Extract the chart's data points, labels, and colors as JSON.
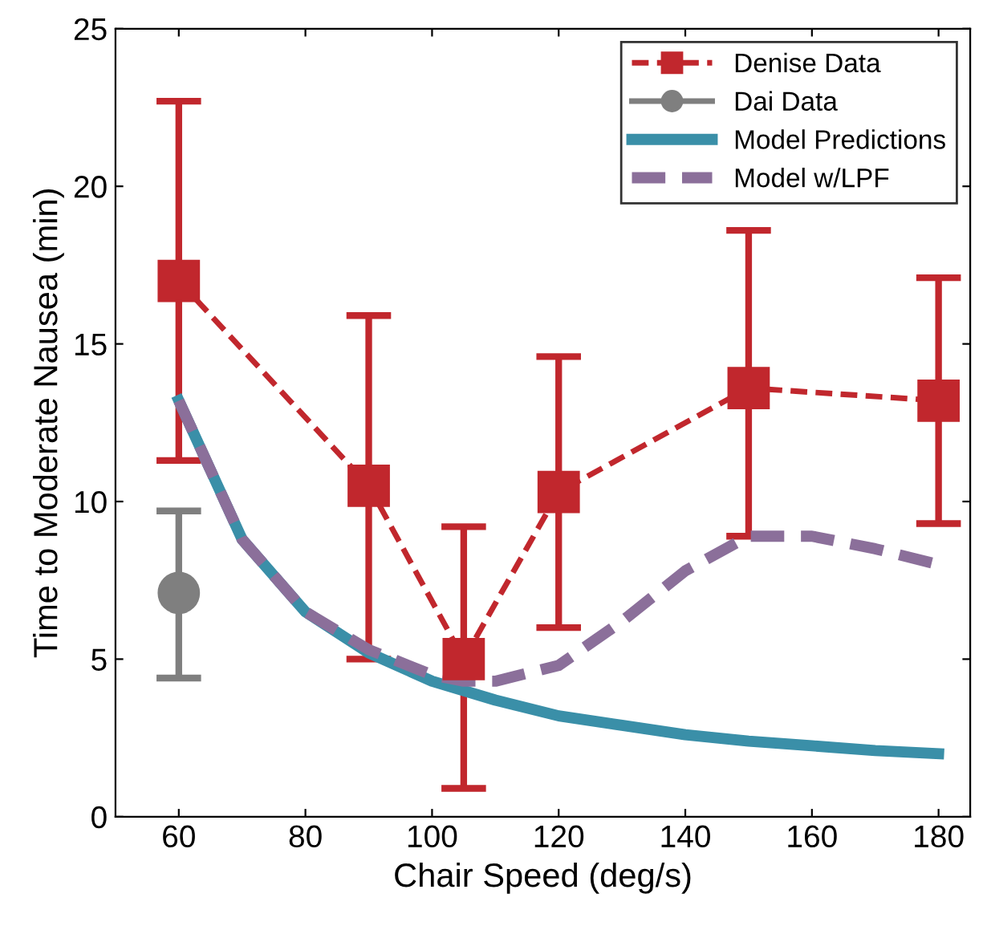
{
  "chart_data": {
    "type": "line",
    "xlabel": "Chair Speed (deg/s)",
    "ylabel": "Time to Moderate Nausea (min)",
    "xlim": [
      50,
      185
    ],
    "ylim": [
      0,
      25
    ],
    "xticks": [
      60,
      80,
      100,
      120,
      140,
      160,
      180
    ],
    "yticks": [
      0,
      5,
      10,
      15,
      20,
      25
    ],
    "legend": "top right",
    "grid": false,
    "series": [
      {
        "name": "Denise Data",
        "color": "#c1272d",
        "marker": "square",
        "line_style": "dashed",
        "x": [
          60,
          90,
          105,
          120,
          150,
          180
        ],
        "values": [
          17.0,
          10.5,
          5.0,
          10.3,
          13.6,
          13.2
        ],
        "errors": [
          [
            11.3,
            22.7
          ],
          [
            5.0,
            15.9
          ],
          [
            0.9,
            9.2
          ],
          [
            6.0,
            14.6
          ],
          [
            8.9,
            18.6
          ],
          [
            9.3,
            17.1
          ]
        ]
      },
      {
        "name": "Dai Data",
        "color": "#7f7f7f",
        "marker": "circle",
        "line_style": "solid",
        "x": [
          60
        ],
        "values": [
          7.1
        ],
        "errors": [
          [
            4.4,
            9.7
          ]
        ]
      },
      {
        "name": "Model Predictions",
        "color": "#3a8fa8",
        "marker": "none",
        "line_style": "solid",
        "x": [
          60,
          70,
          80,
          90,
          100,
          110,
          120,
          130,
          140,
          150,
          160,
          170,
          180
        ],
        "values": [
          13.2,
          8.8,
          6.5,
          5.2,
          4.3,
          3.7,
          3.2,
          2.9,
          2.6,
          2.4,
          2.25,
          2.1,
          2.0
        ]
      },
      {
        "name": "Model w/LPF",
        "color": "#8b6f9a",
        "marker": "none",
        "line_style": "dashed",
        "x": [
          60,
          70,
          80,
          90,
          100,
          105,
          110,
          120,
          130,
          140,
          150,
          160,
          170,
          180
        ],
        "values": [
          13.2,
          8.8,
          6.5,
          5.3,
          4.5,
          4.3,
          4.3,
          4.8,
          6.2,
          7.8,
          8.9,
          8.9,
          8.5,
          8.0
        ]
      }
    ]
  }
}
